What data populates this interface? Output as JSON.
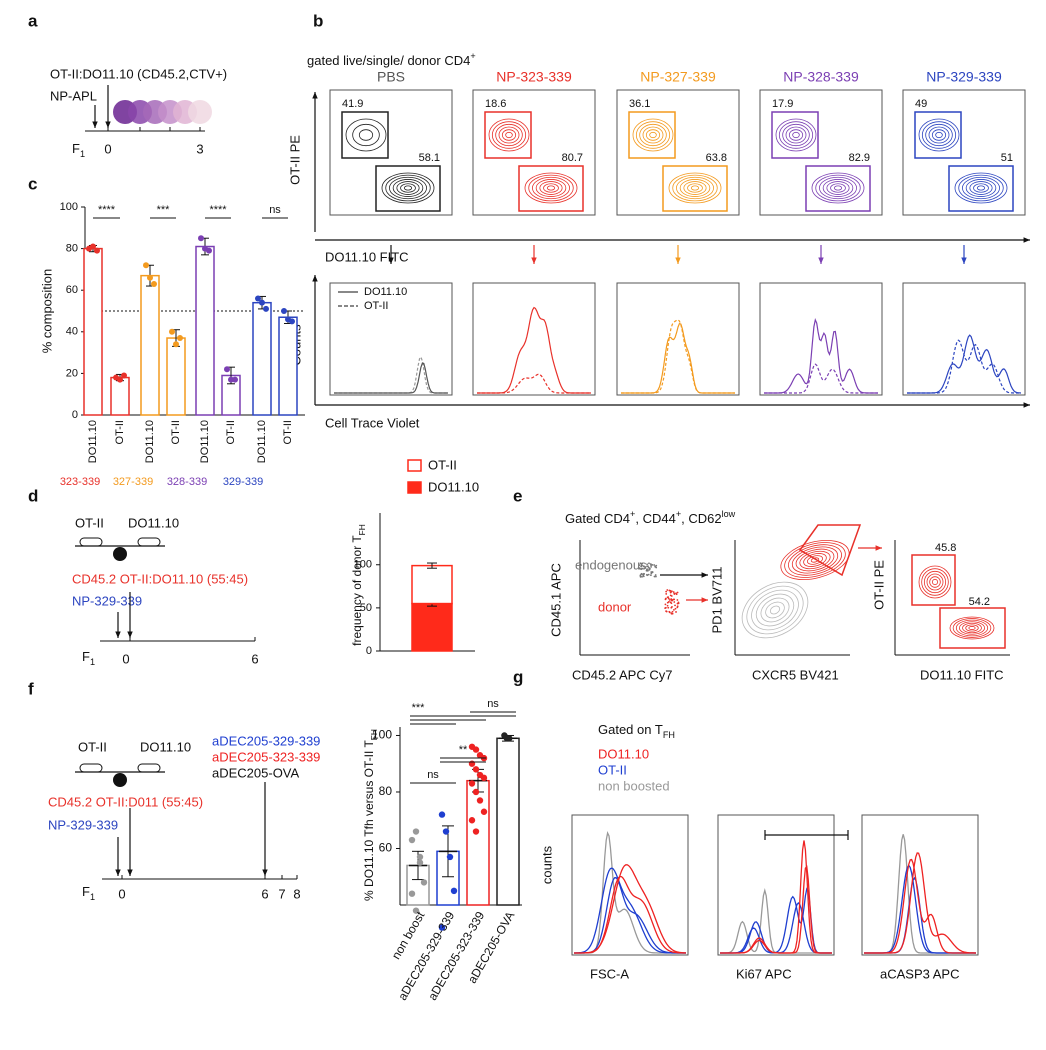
{
  "panel_letters": [
    "a",
    "b",
    "c",
    "d",
    "e",
    "f",
    "g"
  ],
  "a": {
    "donor": "OT-II:DO11.10 (CD45.2,CTV+)",
    "injection": "NP-APL",
    "timeline": {
      "start": "F",
      "start_sub": "1",
      "ticks": [
        "0",
        "3"
      ]
    }
  },
  "b": {
    "gate": "gated live/single/ donor CD4",
    "gate_sup": "+",
    "y_label": "OT-II PE",
    "x_label": "DO11.10 FITC",
    "hist_y_label": "Counts",
    "hist_x_label": "Cell Trace Violet",
    "legend": [
      "DO11.10",
      "OT-II"
    ],
    "samples": [
      {
        "title": "PBS",
        "color": "#555555",
        "otii": "41.9",
        "do1110": "58.1"
      },
      {
        "title": "NP-323-339",
        "color": "#e8312a",
        "otii": "18.6",
        "do1110": "80.7"
      },
      {
        "title": "NP-327-339",
        "color": "#f39a1e",
        "otii": "36.1",
        "do1110": "63.8"
      },
      {
        "title": "NP-328-339",
        "color": "#7b3fb3",
        "otii": "17.9",
        "do1110": "82.9"
      },
      {
        "title": "NP-329-339",
        "color": "#2c45c0",
        "otii": "49",
        "do1110": "51"
      }
    ]
  },
  "d": {
    "left": "OT-II",
    "right": "DO11.10",
    "donor": "CD45.2 OT-II:DO11.10 (55:45)",
    "injection": "NP-329-339",
    "timeline": {
      "start": "F",
      "start_sub": "1",
      "ticks": [
        "0",
        "6"
      ]
    }
  },
  "e": {
    "gate": [
      "Gated CD4",
      "+",
      ", CD44",
      "+",
      ", CD62",
      "low"
    ],
    "plot1": {
      "y_label": "CD45.1 APC",
      "x_label": "CD45.2 APC Cy7",
      "endogenous": "endogenous",
      "donor": "donor"
    },
    "plot2": {
      "y_label": "PD1 BV711",
      "x_label": "CXCR5 BV421"
    },
    "plot3": {
      "y_label": "OT-II PE",
      "x_label": "DO11.10 FITC",
      "otii": "45.8",
      "do1110": "54.2"
    }
  },
  "f": {
    "left": "OT-II",
    "right": "DO11.10",
    "donor": "CD45.2 OT-II:D011 (55:45)",
    "injection": "NP-329-339",
    "boosts": [
      {
        "label": "aDEC205-329-339",
        "color": "#1f3fd0"
      },
      {
        "label": "aDEC205-323-339",
        "color": "#ee2222"
      },
      {
        "label": "aDEC205-OVA",
        "color": "#111111"
      }
    ],
    "timeline": {
      "start": "F",
      "start_sub": "1",
      "ticks": [
        "0",
        "6",
        "7",
        "8"
      ]
    }
  },
  "g": {
    "gate": "Gated on T",
    "gate_sub": "FH",
    "legend": [
      {
        "label": "DO11.10",
        "color": "#ee2222"
      },
      {
        "label": "OT-II",
        "color": "#1f3fd0"
      },
      {
        "label": "non boosted",
        "color": "#999999"
      }
    ],
    "y_label": "counts",
    "x_labels": [
      "FSC-A",
      "Ki67 APC",
      "aCASP3 APC"
    ]
  },
  "chart_data": [
    {
      "type": "bar",
      "y_label": "% composition",
      "categories": [
        "DO11.10",
        "OT-II",
        "DO11.10",
        "OT-II",
        "DO11.10",
        "OT-II",
        "DO11.10",
        "OT-II"
      ],
      "values": [
        80,
        18,
        67,
        37,
        81,
        19,
        54,
        47
      ],
      "errors": [
        1.5,
        1.5,
        5,
        4,
        4,
        4,
        3,
        3
      ],
      "colors": [
        "#e8312a",
        "#e8312a",
        "#f39a1e",
        "#f39a1e",
        "#7b3fb3",
        "#7b3fb3",
        "#2c45c0",
        "#2c45c0"
      ],
      "points": [
        [
          80,
          81,
          79
        ],
        [
          18,
          17,
          19
        ],
        [
          72,
          66,
          63
        ],
        [
          40,
          34,
          37
        ],
        [
          85,
          80,
          79
        ],
        [
          22,
          17,
          17
        ],
        [
          56,
          54,
          51
        ],
        [
          50,
          46,
          45
        ]
      ],
      "ylim": [
        0,
        100
      ],
      "yticks": [
        0,
        20,
        40,
        60,
        80,
        100
      ],
      "reference_line": 50,
      "groups": [
        {
          "label": "323-339",
          "color": "#e8312a"
        },
        {
          "label": "327-339",
          "color": "#f39a1e"
        },
        {
          "label": "328-339",
          "color": "#7b3fb3"
        },
        {
          "label": "329-339",
          "color": "#2c45c0"
        }
      ],
      "significance": [
        "****",
        "***",
        "****",
        "ns"
      ]
    },
    {
      "type": "stacked_bar",
      "y_label": "frequency of donor T",
      "y_label_sub": "FH",
      "series": [
        {
          "name": "DO11.10",
          "color": "#ff2a1a",
          "filled": true,
          "values": [
            55
          ],
          "errors": [
            3
          ]
        },
        {
          "name": "OT-II",
          "color": "#ff2a1a",
          "filled": false,
          "values": [
            44
          ],
          "errors": [
            3
          ]
        }
      ],
      "ylim": [
        0,
        160
      ],
      "yticks": [
        0,
        50,
        100
      ]
    },
    {
      "type": "bar",
      "y_label": "% DO11.10 Tfh versus OT-II T",
      "y_label_sub": "FH",
      "categories": [
        "non boost",
        "aDEC205-329-339",
        "aDEC205-323-339",
        "aDEC205-OVA"
      ],
      "values": [
        54,
        59,
        84,
        99
      ],
      "errors": [
        5,
        9,
        4,
        1
      ],
      "colors": [
        "#999999",
        "#1f3fd0",
        "#ee2222",
        "#222222"
      ],
      "points": [
        [
          63,
          66,
          57,
          48,
          44,
          38,
          55
        ],
        [
          72,
          66,
          57,
          45,
          32
        ],
        [
          96,
          95,
          93,
          92,
          90,
          88,
          86,
          85,
          83,
          80,
          77,
          73,
          70,
          66
        ],
        [
          100,
          99,
          99
        ]
      ],
      "ylim": [
        40,
        103
      ],
      "yticks": [
        60,
        80,
        100
      ],
      "significance": [
        "***",
        "ns",
        "**",
        "ns"
      ]
    }
  ]
}
